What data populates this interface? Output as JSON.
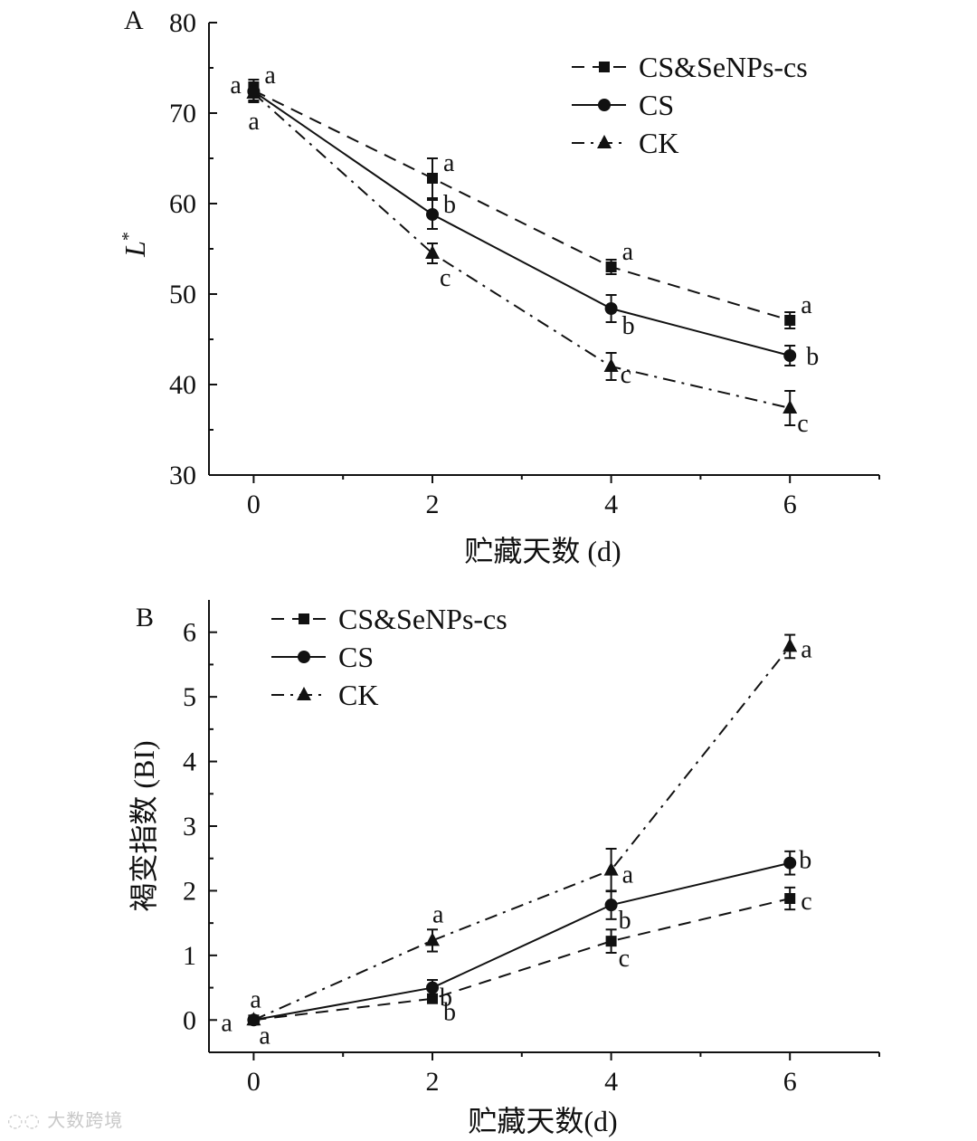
{
  "chart_data": [
    {
      "panel": "A",
      "type": "line",
      "panel_label": "A",
      "xlabel": "贮藏天数 (d)",
      "ylabel": "L",
      "ylabel_superscript": "*",
      "xlim": [
        -0.5,
        7
      ],
      "ylim": [
        30,
        80
      ],
      "x_ticks": [
        0,
        2,
        4,
        6
      ],
      "y_ticks": [
        30,
        40,
        50,
        60,
        70,
        80
      ],
      "legend_position": "top-right",
      "series": [
        {
          "name": "CS&SeNPs-cs",
          "marker": "square",
          "line": "dashed",
          "x": [
            0,
            2,
            4,
            6
          ],
          "y": [
            72.5,
            62.8,
            53.0,
            47.1
          ],
          "error": [
            1.2,
            2.2,
            0.8,
            0.9
          ],
          "letters": [
            "a",
            "a",
            "a",
            "a"
          ]
        },
        {
          "name": "CS",
          "marker": "circle",
          "line": "solid",
          "x": [
            0,
            2,
            4,
            6
          ],
          "y": [
            72.4,
            58.8,
            48.4,
            43.2
          ],
          "error": [
            1.0,
            1.6,
            1.5,
            1.1
          ],
          "letters": [
            "a",
            "b",
            "b",
            "b"
          ]
        },
        {
          "name": "CK",
          "marker": "triangle",
          "line": "dashdot",
          "x": [
            0,
            2,
            4,
            6
          ],
          "y": [
            72.2,
            54.5,
            42.0,
            37.4
          ],
          "error": [
            1.0,
            1.1,
            1.5,
            1.9
          ],
          "letters": [
            "a",
            "c",
            "c",
            "c"
          ]
        }
      ]
    },
    {
      "panel": "B",
      "type": "line",
      "panel_label": "B",
      "xlabel": "贮藏天数(d)",
      "ylabel": "褐变指数 (BI)",
      "xlim": [
        -0.5,
        7
      ],
      "ylim": [
        -0.5,
        6.5
      ],
      "x_ticks": [
        0,
        2,
        4,
        6
      ],
      "y_ticks": [
        0,
        1,
        2,
        3,
        4,
        5,
        6
      ],
      "legend_position": "top-left",
      "series": [
        {
          "name": "CS&SeNPs-cs",
          "marker": "square",
          "line": "dashed",
          "x": [
            0,
            2,
            4,
            6
          ],
          "y": [
            0.0,
            0.33,
            1.22,
            1.88
          ],
          "error": [
            0.03,
            0.05,
            0.18,
            0.17
          ],
          "letters": [
            "a",
            "b",
            "c",
            "c"
          ]
        },
        {
          "name": "CS",
          "marker": "circle",
          "line": "solid",
          "x": [
            0,
            2,
            4,
            6
          ],
          "y": [
            0.0,
            0.5,
            1.78,
            2.43
          ],
          "error": [
            0.03,
            0.12,
            0.22,
            0.18
          ],
          "letters": [
            "a",
            "b",
            "b",
            "b"
          ]
        },
        {
          "name": "CK",
          "marker": "triangle",
          "line": "dashdot",
          "x": [
            0,
            2,
            4,
            6
          ],
          "y": [
            0.0,
            1.23,
            2.32,
            5.78
          ],
          "error": [
            0.03,
            0.17,
            0.33,
            0.18
          ],
          "letters": [
            "a",
            "a",
            "a",
            "a"
          ]
        }
      ]
    }
  ],
  "watermark": {
    "text": "大数跨境"
  }
}
